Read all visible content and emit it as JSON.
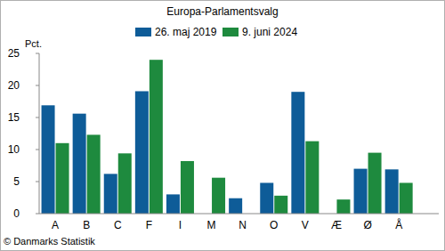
{
  "chart_data": {
    "type": "bar",
    "title": "Europa-Parlamentsvalg",
    "y_label": "Pct.",
    "source": "© Danmarks Statistik",
    "categories": [
      "A",
      "B",
      "C",
      "F",
      "I",
      "M",
      "N",
      "O",
      "V",
      "Æ",
      "Ø",
      "Å"
    ],
    "series": [
      {
        "name": "26. maj 2019",
        "color": "#0e5c98",
        "values": [
          16.9,
          15.6,
          6.2,
          19.1,
          3.0,
          null,
          2.4,
          4.8,
          19.0,
          null,
          7.0,
          6.9
        ]
      },
      {
        "name": "9. juni 2024",
        "color": "#1e8a3e",
        "values": [
          11.0,
          12.3,
          9.4,
          24.0,
          8.2,
          5.6,
          null,
          2.8,
          11.3,
          2.2,
          9.5,
          4.8
        ]
      }
    ],
    "ylim": [
      0,
      25
    ],
    "yticks": [
      0,
      5,
      10,
      15,
      20,
      25
    ],
    "grid": false,
    "legend": "top"
  }
}
